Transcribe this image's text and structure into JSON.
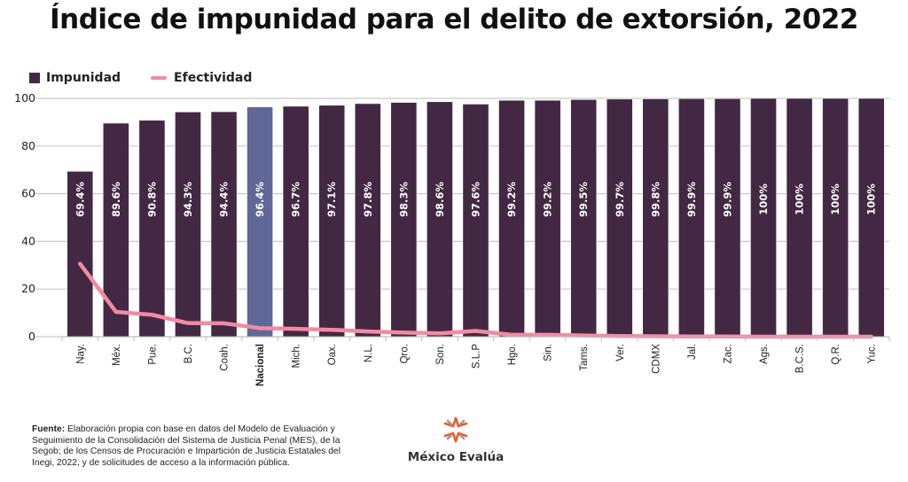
{
  "chart_data": {
    "type": "bar",
    "title": "Índice de impunidad para el delito de extorsión, 2022",
    "xlabel": "",
    "ylabel": "",
    "ylim": [
      0,
      100
    ],
    "yticks": [
      0,
      20,
      40,
      60,
      80,
      100
    ],
    "grid": true,
    "legend_placement": "top-left",
    "highlight_category": "Nacional",
    "categories": [
      "Nay.",
      "Méx.",
      "Pue.",
      "B.C.",
      "Coah.",
      "Nacional",
      "Mich.",
      "Oax.",
      "N.L.",
      "Qro.",
      "Son.",
      "S.L.P",
      "Hgo.",
      "Sin.",
      "Tams.",
      "Ver.",
      "CDMX",
      "Jal.",
      "Zac.",
      "Ags.",
      "B.C.S.",
      "Q.R.",
      "Yuc."
    ],
    "series": [
      {
        "name": "Impunidad",
        "type": "bar",
        "color": "#432843",
        "highlight_color": "#5f6898",
        "values": [
          69.4,
          89.6,
          90.8,
          94.3,
          94.4,
          96.4,
          96.7,
          97.1,
          97.8,
          98.3,
          98.6,
          97.6,
          99.2,
          99.2,
          99.5,
          99.7,
          99.8,
          99.9,
          99.9,
          100,
          100,
          100,
          100
        ],
        "labels": [
          "69.4%",
          "89.6%",
          "90.8%",
          "94.3%",
          "94.4%",
          "96.4%",
          "96.7%",
          "97.1%",
          "97.8%",
          "98.3%",
          "98.6%",
          "97.6%",
          "99.2%",
          "99.2%",
          "99.5%",
          "99.7%",
          "99.8%",
          "99.9%",
          "99.9%",
          "100%",
          "100%",
          "100%",
          "100%"
        ]
      },
      {
        "name": "Efectividad",
        "type": "line",
        "color": "#f28ba2",
        "values": [
          30.6,
          10.4,
          9.2,
          5.7,
          5.6,
          3.6,
          3.3,
          2.9,
          2.2,
          1.7,
          1.4,
          2.4,
          0.8,
          0.8,
          0.5,
          0.3,
          0.2,
          0.1,
          0.1,
          0,
          0,
          0,
          0
        ]
      }
    ]
  },
  "legend": {
    "bar_label": "Impunidad",
    "line_label": "Efectividad"
  },
  "footer": {
    "source_label": "Fuente:",
    "source_text": " Elaboración propia con base en datos del Modelo de Evaluación y Seguimiento de la Consolidación del Sistema de Justicia Penal (MES), de la Segob; de los Censos de Procuración e Impartición de Justicia Estatales del Inegi, 2022, y de solicitudes de acceso a la información pública.",
    "logo_text": "México Evalúa",
    "logo_colors": {
      "primary": "#f05a28",
      "secondary": "#9a9a9a"
    }
  }
}
